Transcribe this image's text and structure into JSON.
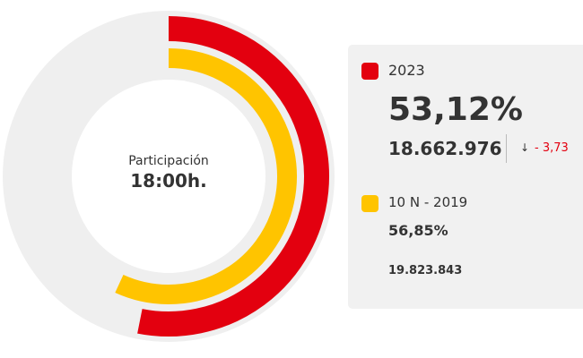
{
  "center": {
    "label": "Participación",
    "time": "18:00h."
  },
  "legend": [
    {
      "name": "2023",
      "percent": "53,12%",
      "votes": "18.662.976",
      "change_icon": "arrow-down-icon",
      "change": "- 3,73",
      "color": "#e3000f"
    },
    {
      "name": "10 N - 2019",
      "percent": "56,85%",
      "votes": "19.823.843",
      "color": "#ffc400"
    }
  ],
  "chart_data": {
    "type": "radial-bar",
    "categories": [
      "2023",
      "10 N - 2019"
    ],
    "values": [
      53.12,
      56.85
    ],
    "max": 100,
    "colors": [
      "#e3000f",
      "#ffc400"
    ],
    "track_color": "#efefef"
  }
}
